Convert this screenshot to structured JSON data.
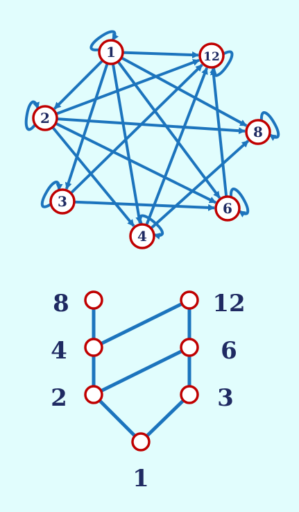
{
  "colors": {
    "background": "#e1fdfd",
    "edge": "#1c74bd",
    "node_outline": "#c00000",
    "node_fill": "#ffffff",
    "label": "#1f2a62"
  },
  "graph": {
    "nodes": [
      {
        "id": "1",
        "label": "1"
      },
      {
        "id": "2",
        "label": "2"
      },
      {
        "id": "3",
        "label": "3"
      },
      {
        "id": "4",
        "label": "4"
      },
      {
        "id": "6",
        "label": "6"
      },
      {
        "id": "8",
        "label": "8"
      },
      {
        "id": "12",
        "label": "12"
      }
    ],
    "edges": [
      [
        "1",
        "2"
      ],
      [
        "1",
        "3"
      ],
      [
        "1",
        "4"
      ],
      [
        "1",
        "6"
      ],
      [
        "1",
        "8"
      ],
      [
        "1",
        "12"
      ],
      [
        "2",
        "4"
      ],
      [
        "2",
        "6"
      ],
      [
        "2",
        "8"
      ],
      [
        "2",
        "12"
      ],
      [
        "3",
        "6"
      ],
      [
        "3",
        "12"
      ],
      [
        "4",
        "8"
      ],
      [
        "4",
        "12"
      ],
      [
        "6",
        "12"
      ]
    ],
    "self_loops": [
      "1",
      "2",
      "3",
      "4",
      "6",
      "8",
      "12"
    ]
  },
  "hasse": {
    "nodes": [
      {
        "id": "1",
        "label": "1"
      },
      {
        "id": "2",
        "label": "2"
      },
      {
        "id": "3",
        "label": "3"
      },
      {
        "id": "4",
        "label": "4"
      },
      {
        "id": "6",
        "label": "6"
      },
      {
        "id": "8",
        "label": "8"
      },
      {
        "id": "12",
        "label": "12"
      }
    ],
    "edges": [
      [
        "1",
        "2"
      ],
      [
        "1",
        "3"
      ],
      [
        "2",
        "4"
      ],
      [
        "2",
        "6"
      ],
      [
        "3",
        "6"
      ],
      [
        "4",
        "8"
      ],
      [
        "4",
        "12"
      ],
      [
        "6",
        "12"
      ]
    ]
  }
}
